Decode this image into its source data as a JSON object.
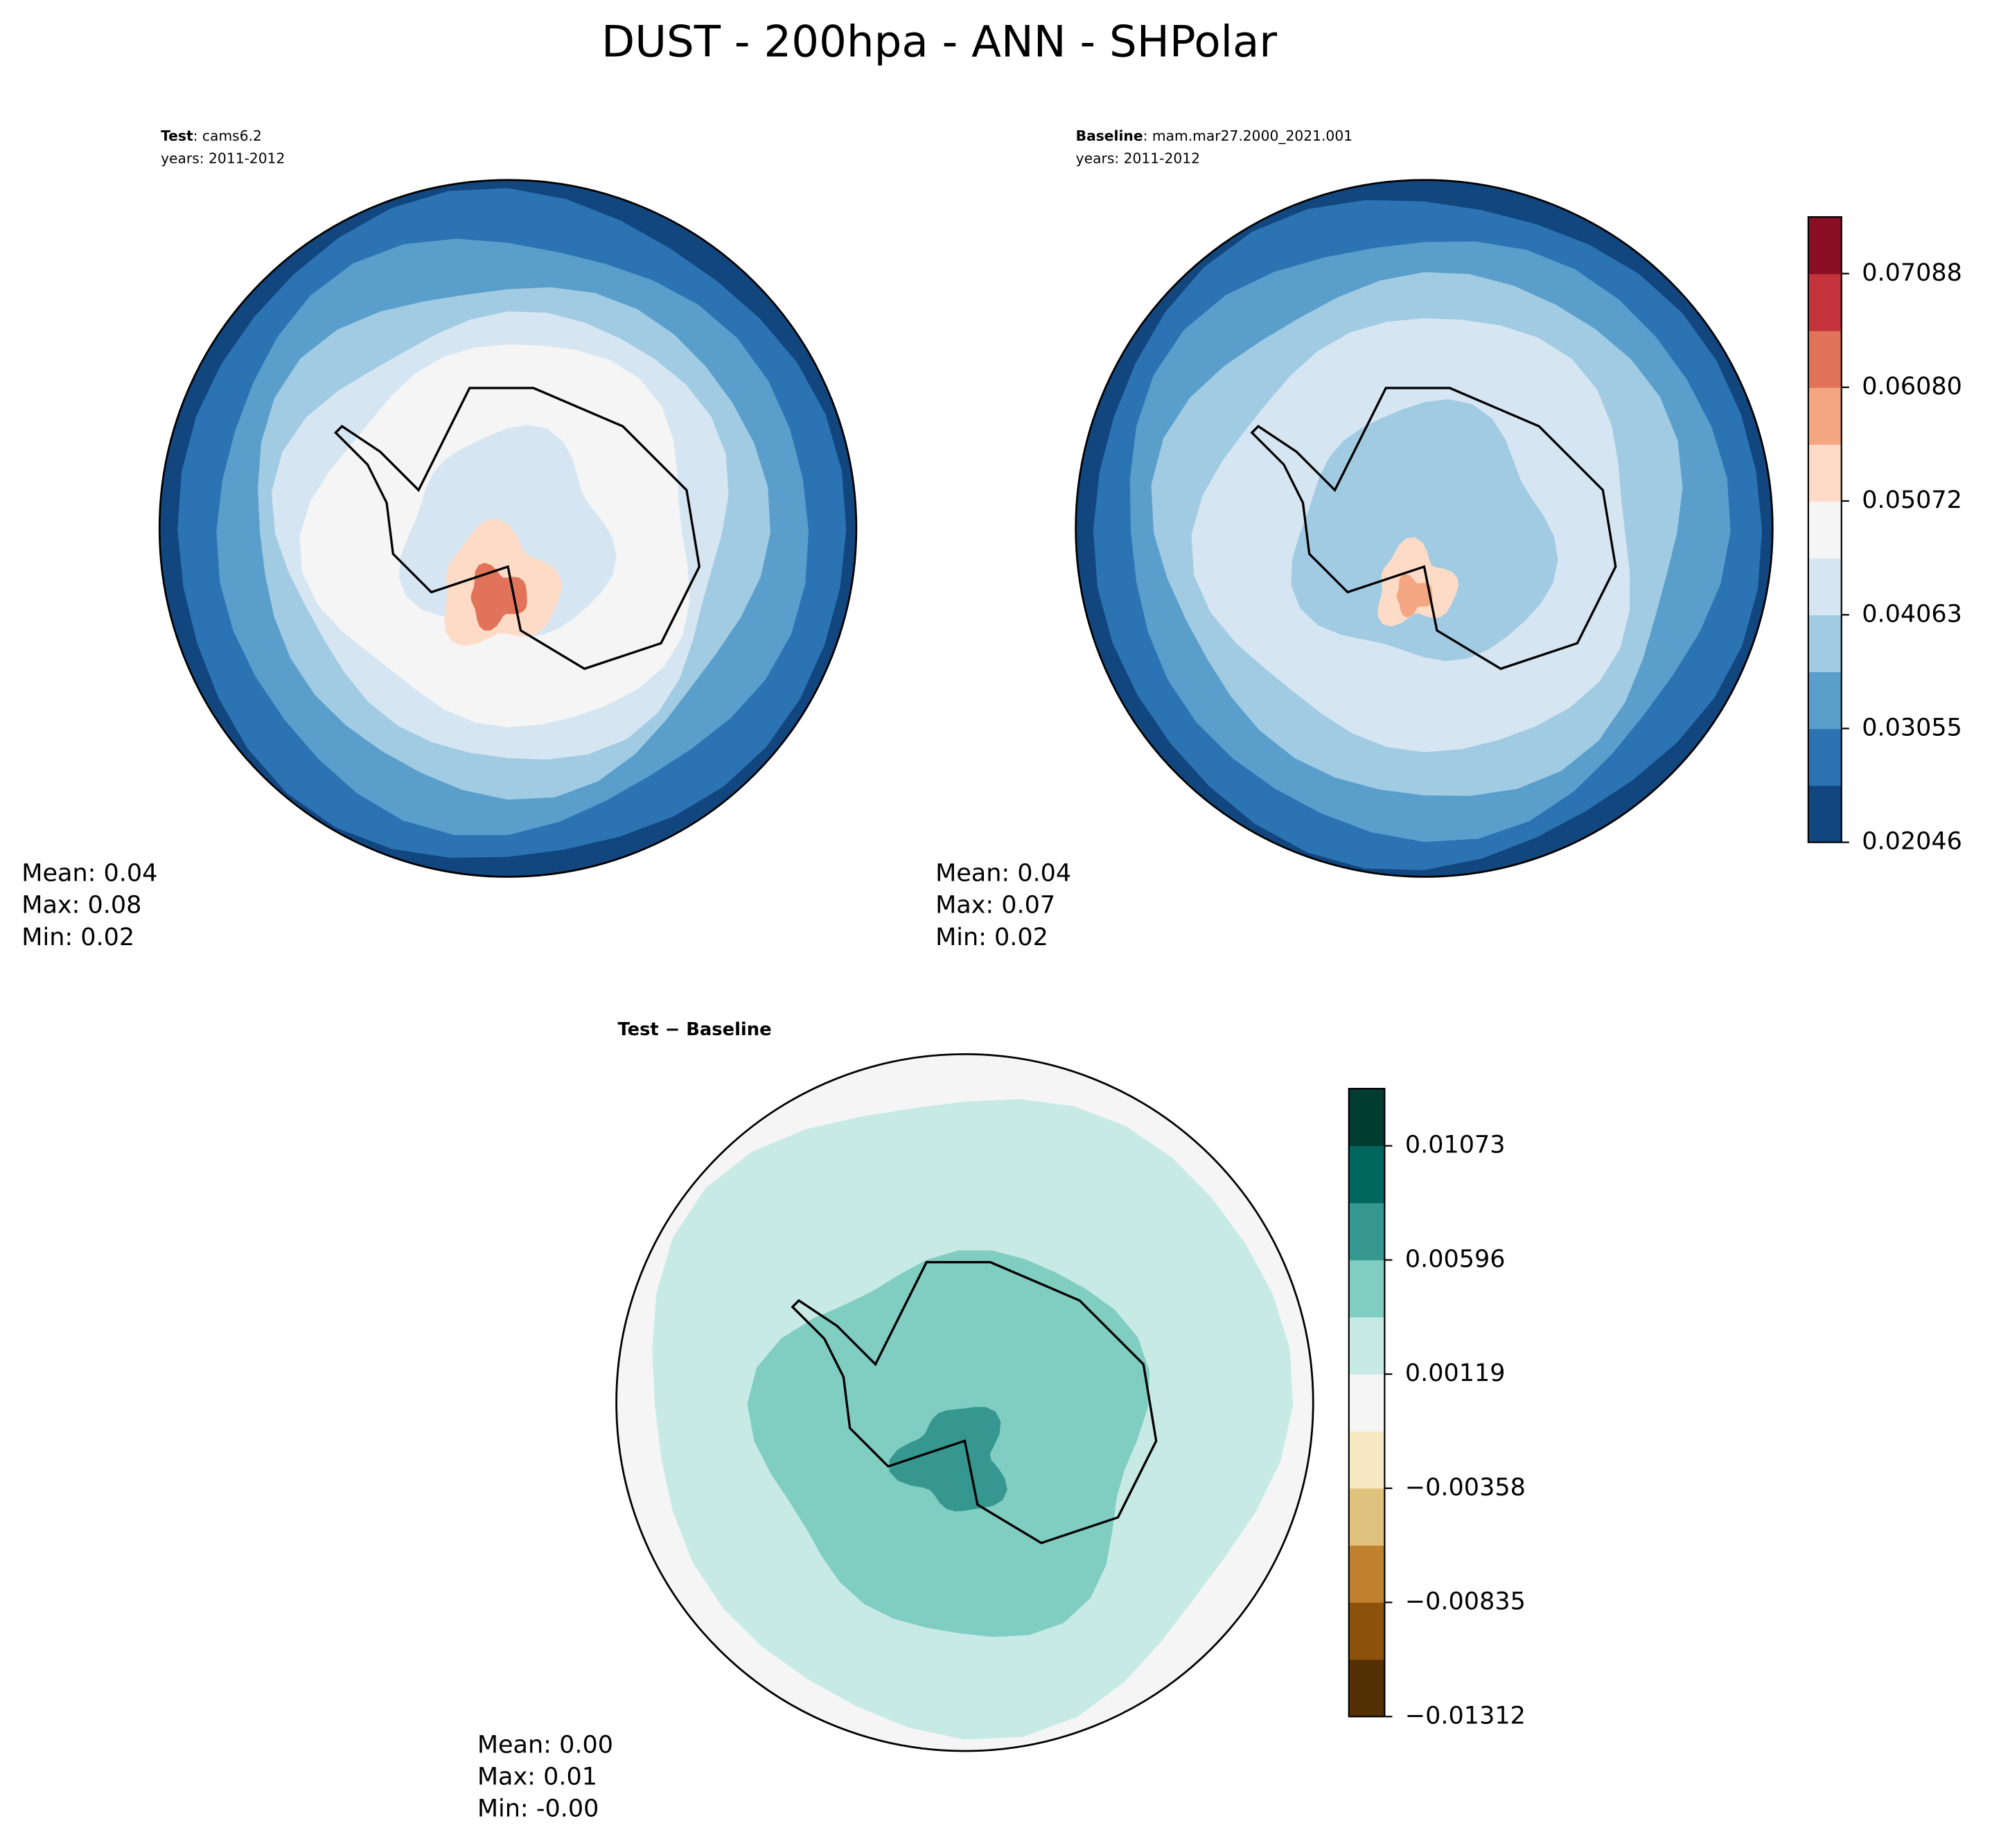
{
  "chart_data": [
    {
      "type": "contour-map",
      "subtitle_bold": "Test",
      "subtitle_rest": ": cams6.2",
      "subtitle_years": "years: 2011-2012",
      "stats": [
        "Mean:  0.04",
        "Max:  0.08",
        "Min:  0.02"
      ]
    },
    {
      "type": "contour-map",
      "subtitle_bold": "Baseline",
      "subtitle_rest": ": mam.mar27.2000_2021.001",
      "subtitle_years": "years: 2011-2012",
      "stats": [
        "Mean:  0.04",
        "Max:  0.07",
        "Min:  0.02"
      ],
      "colorbar": {
        "ylim": [
          0.02046,
          0.0759
        ],
        "yticks": [
          {
            "value": 0.02046,
            "label": "0.02046"
          },
          {
            "value": 0.03055,
            "label": "0.03055"
          },
          {
            "value": 0.04063,
            "label": "0.04063"
          },
          {
            "value": 0.05072,
            "label": "0.05072"
          },
          {
            "value": 0.0608,
            "label": "0.06080"
          },
          {
            "value": 0.07088,
            "label": "0.07088"
          }
        ],
        "colors": [
          "#12467f",
          "#2c73b4",
          "#5a9fcb",
          "#a1cbe2",
          "#d5e6f2",
          "#f5f5f5",
          "#fddbc7",
          "#f4a582",
          "#e0735a",
          "#c4323c",
          "#8a0f25"
        ]
      }
    },
    {
      "type": "contour-map",
      "subtitle_bold": "Test − Baseline",
      "stats": [
        "Mean:  0.00",
        "Max:  0.01",
        "Min: -0.00"
      ],
      "colorbar": {
        "ylim": [
          -0.01312,
          0.01312
        ],
        "yticks": [
          {
            "value": -0.01312,
            "label": "−0.01312"
          },
          {
            "value": -0.00835,
            "label": "−0.00835"
          },
          {
            "value": -0.00358,
            "label": "−0.00358"
          },
          {
            "value": 0.00119,
            "label": "0.00119"
          },
          {
            "value": 0.00596,
            "label": "0.00596"
          },
          {
            "value": 0.01073,
            "label": "0.01073"
          }
        ],
        "colors": [
          "#543005",
          "#8c510a",
          "#bf812d",
          "#dfc27d",
          "#f6e8c3",
          "#f5f5f5",
          "#c7eae5",
          "#80cdc1",
          "#35978f",
          "#01665e",
          "#003c30"
        ]
      }
    }
  ],
  "title": "DUST - 200hpa - ANN - SHPolar"
}
